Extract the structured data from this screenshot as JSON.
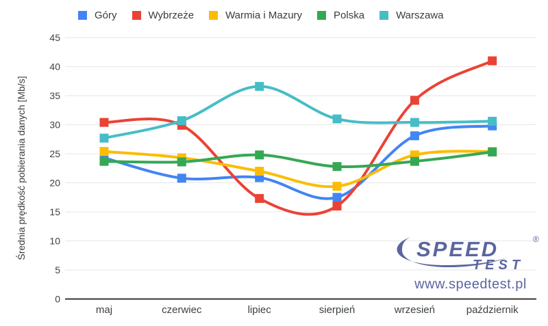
{
  "y_axis": {
    "title": "Średnia prędkość pobierania danych [Mb/s]"
  },
  "chart_data": {
    "type": "line",
    "title": "",
    "categories": [
      "maj",
      "czerwiec",
      "lipiec",
      "sierpień",
      "wrzesień",
      "październik"
    ],
    "series": [
      {
        "name": "Góry",
        "color": "#4285F4",
        "values": [
          24.3,
          20.8,
          20.9,
          17.5,
          28.1,
          29.8
        ]
      },
      {
        "name": "Wybrzeże",
        "color": "#EA4335",
        "values": [
          30.4,
          29.9,
          17.3,
          16.0,
          34.2,
          41.0
        ]
      },
      {
        "name": "Warmia i Mazury",
        "color": "#FBBC04",
        "values": [
          25.4,
          24.3,
          22.0,
          19.4,
          24.8,
          25.4
        ]
      },
      {
        "name": "Polska",
        "color": "#34A853",
        "values": [
          23.7,
          23.6,
          24.8,
          22.8,
          23.7,
          25.3
        ]
      },
      {
        "name": "Warszawa",
        "color": "#46BDC6",
        "values": [
          27.7,
          30.7,
          36.6,
          31.0,
          30.4,
          30.6
        ]
      }
    ],
    "xlabel": "",
    "ylabel": "Średnia prędkość pobierania danych [Mb/s]",
    "ylim": [
      0,
      45
    ],
    "ytick_step": 5,
    "grid": "horizontal-only",
    "legend_position": "top",
    "smooth": true,
    "marker": "square",
    "axis_text_color": "#3c4043",
    "gridline_color": "#e6e6e6",
    "baseline_color": "#333333"
  },
  "watermark": {
    "brand_speed": "SPEED",
    "brand_test": "TEST",
    "registered": "®",
    "url": "www.speedtest.pl",
    "color": "#5A66A0"
  }
}
